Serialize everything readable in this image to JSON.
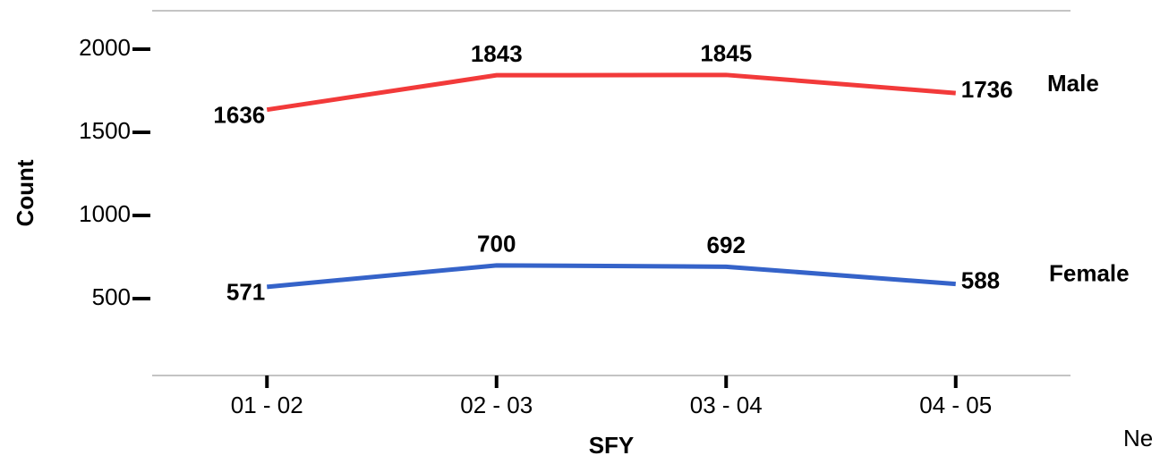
{
  "chart_data": {
    "type": "line",
    "x_label": "SFY",
    "y_label": "Count",
    "annotation": "Ne",
    "categories": [
      "01 - 02",
      "02 - 03",
      "03 - 04",
      "04 - 05"
    ],
    "series": [
      {
        "name": "Male",
        "color": "#f23a3a",
        "values": [
          1636,
          1843,
          1845,
          1736
        ]
      },
      {
        "name": "Female",
        "color": "#3563c9",
        "values": [
          571,
          700,
          692,
          588
        ]
      }
    ],
    "ylim": [
      38,
      2231
    ],
    "yticks": [
      500,
      1000,
      1500,
      2000
    ]
  }
}
